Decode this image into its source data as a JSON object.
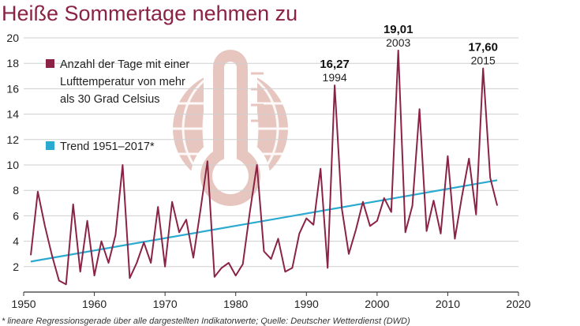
{
  "chart_data": {
    "type": "line",
    "title": "Heiße Sommertage nehmen zu",
    "footnote": "* lineare Regressionsgerade über alle dargestellten Indikatorwerte; Quelle: Deutscher Wetterdienst (DWD)",
    "xlim": [
      1950,
      2020
    ],
    "ylim": [
      0,
      20
    ],
    "x_ticks": [
      1950,
      1960,
      1970,
      1980,
      1990,
      2000,
      2010,
      2020
    ],
    "y_ticks": [
      2,
      4,
      6,
      8,
      10,
      12,
      14,
      16,
      18,
      20
    ],
    "grid": "horizontal",
    "legend_position": "top-left",
    "series": [
      {
        "name": "Anzahl der Tage mit einer Lufttemperatur von mehr als 30 Grad Celsius",
        "legend_lines": [
          "Anzahl der Tage mit einer",
          "Lufttemperatur von mehr",
          "als 30 Grad Celsius"
        ],
        "color": "#8b2344",
        "x": [
          1951,
          1952,
          1953,
          1954,
          1955,
          1956,
          1957,
          1958,
          1959,
          1960,
          1961,
          1962,
          1963,
          1964,
          1965,
          1966,
          1967,
          1968,
          1969,
          1970,
          1971,
          1972,
          1973,
          1974,
          1975,
          1976,
          1977,
          1978,
          1979,
          1980,
          1981,
          1982,
          1983,
          1984,
          1985,
          1986,
          1987,
          1988,
          1989,
          1990,
          1991,
          1992,
          1993,
          1994,
          1995,
          1996,
          1997,
          1998,
          1999,
          2000,
          2001,
          2002,
          2003,
          2004,
          2005,
          2006,
          2007,
          2008,
          2009,
          2010,
          2011,
          2012,
          2013,
          2014,
          2015,
          2016,
          2017
        ],
        "y": [
          2.9,
          7.9,
          5.2,
          2.9,
          0.9,
          0.6,
          6.9,
          1.6,
          5.6,
          1.3,
          4.0,
          2.3,
          4.5,
          10.0,
          1.1,
          2.3,
          3.9,
          2.3,
          6.7,
          2.0,
          7.1,
          4.7,
          5.7,
          2.7,
          6.4,
          10.3,
          1.2,
          1.9,
          2.3,
          1.3,
          2.2,
          6.3,
          10.0,
          3.2,
          2.6,
          4.2,
          1.6,
          1.9,
          4.6,
          5.8,
          5.3,
          9.7,
          1.9,
          16.27,
          6.6,
          3.0,
          4.9,
          7.1,
          5.2,
          5.6,
          7.4,
          6.3,
          19.01,
          4.7,
          6.8,
          14.4,
          4.8,
          7.2,
          4.6,
          10.7,
          4.2,
          7.5,
          10.5,
          6.1,
          17.6,
          9.0,
          6.8
        ]
      },
      {
        "name": "Trend 1951–2017*",
        "color": "#2aaad0",
        "x": [
          1951,
          2017
        ],
        "y": [
          2.4,
          8.8
        ]
      }
    ],
    "annotations": [
      {
        "value": "16,27",
        "year": "1994",
        "x": 1994,
        "y": 16.27
      },
      {
        "value": "19,01",
        "year": "2003",
        "x": 2003,
        "y": 19.01
      },
      {
        "value": "17,60",
        "year": "2015",
        "x": 2015,
        "y": 17.6
      }
    ],
    "watermark_icon": "thermometer-globe-icon"
  }
}
